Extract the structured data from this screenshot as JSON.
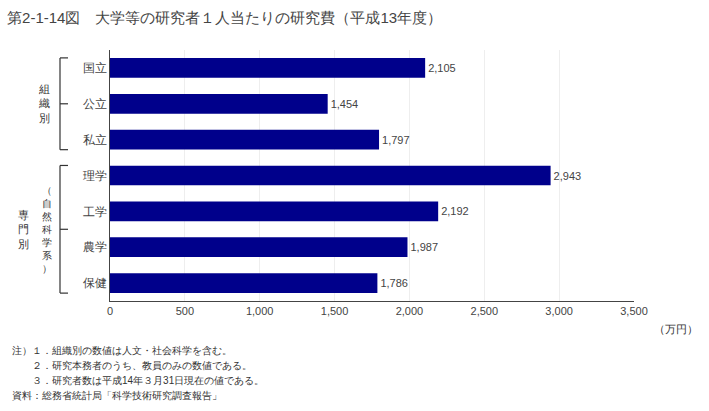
{
  "chart_data": {
    "type": "bar",
    "orientation": "horizontal",
    "title": "第2-1-14図　大学等の研究者１人当たりの研究費（平成13年度）",
    "categories": [
      "国立",
      "公立",
      "私立",
      "理学",
      "工学",
      "農学",
      "保健"
    ],
    "values": [
      2105,
      1454,
      1797,
      2943,
      2192,
      1987,
      1786
    ],
    "value_labels": [
      "2,105",
      "1,454",
      "1,797",
      "2,943",
      "2,192",
      "1,987",
      "1,786"
    ],
    "color": "#00008B",
    "data_labels": true,
    "xlim": [
      0,
      3500
    ],
    "xticks": [
      0,
      500,
      {
        "value": 1000,
        "label": "1,000"
      },
      {
        "value": 1500,
        "label": "1,500"
      },
      {
        "value": 2000,
        "label": "2,000"
      },
      {
        "value": 2500,
        "label": "2,500"
      },
      {
        "value": 3000,
        "label": "3,000"
      },
      {
        "value": 3500,
        "label": "3,500"
      }
    ],
    "grid": true,
    "xlabel": "（万円）",
    "groups": [
      {
        "label": "組\n織\n別",
        "categories": [
          "国立",
          "公立",
          "私立"
        ]
      },
      {
        "label": "専\n門\n別",
        "sublabel": "（\n自\n然\n科\n学\n系\n）",
        "categories": [
          "理学",
          "工学",
          "農学",
          "保健"
        ]
      }
    ],
    "annotations": [
      "注）１．組織別の数値は人文・社会科学を含む。",
      "　　２．研究本務者のうち、教員のみの数値である。",
      "　　３．研究者数は平成14年３月31日現在の値である。",
      "資料：総務省統計局「科学技術研究調査報告」"
    ]
  }
}
